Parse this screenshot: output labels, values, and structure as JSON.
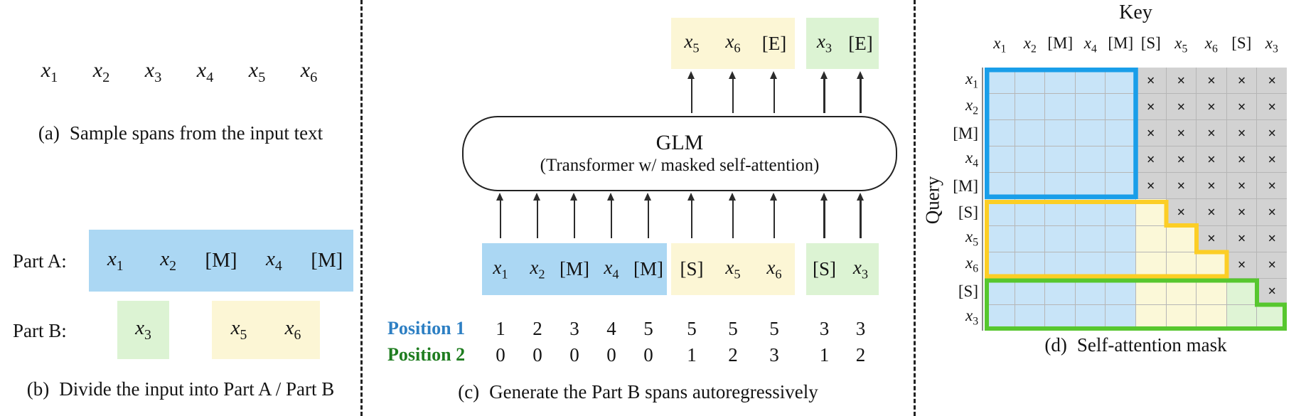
{
  "colors": {
    "blue_fill": "#abd7f3",
    "green_fill": "#dcf3d3",
    "yellow_fill": "#fcf6d5",
    "mask_blue": "#c8e4f8",
    "mask_yellow": "#fbf8d8",
    "mask_green": "#dff4d5",
    "mask_gray": "#d2d2d2",
    "grid_line": "#b6b6b6",
    "border_blue": "#199ee9",
    "border_yellow": "#fcce25",
    "border_green": "#57c72e",
    "pos1_blue": "#2d7fc3",
    "pos2_green": "#1f7d20"
  },
  "panel_a": {
    "tokens": [
      "x1",
      "x2",
      "x3",
      "x4",
      "x5",
      "x6"
    ],
    "caption_label": "(a)",
    "caption": "Sample spans from the input text"
  },
  "panel_b": {
    "part_a_label": "Part A:",
    "part_a_tokens": [
      "x1",
      "x2",
      "[M]",
      "x4",
      "[M]"
    ],
    "part_b_label": "Part B:",
    "part_b_span1": [
      "x3"
    ],
    "part_b_span2": [
      "x5",
      "x6"
    ],
    "caption_label": "(b)",
    "caption": "Divide the input into Part A / Part B"
  },
  "panel_c": {
    "output_span1": [
      "x5",
      "x6",
      "[E]"
    ],
    "output_span2": [
      "x3",
      "[E]"
    ],
    "model_title": "GLM",
    "model_subtitle": "(Transformer w/ masked self-attention)",
    "input_part_a": [
      "x1",
      "x2",
      "[M]",
      "x4",
      "[M]"
    ],
    "input_span1": [
      "[S]",
      "x5",
      "x6"
    ],
    "input_span2": [
      "[S]",
      "x3"
    ],
    "position1_label": "Position 1",
    "position1": [
      "1",
      "2",
      "3",
      "4",
      "5",
      "5",
      "5",
      "5",
      "3",
      "3"
    ],
    "position2_label": "Position 2",
    "position2": [
      "0",
      "0",
      "0",
      "0",
      "0",
      "1",
      "2",
      "3",
      "1",
      "2"
    ],
    "caption_label": "(c)",
    "caption": "Generate the Part B spans autoregressively"
  },
  "panel_d": {
    "key_label": "Key",
    "query_label": "Query",
    "col_labels": [
      "x1",
      "x2",
      "[M]",
      "x4",
      "[M]",
      "[S]",
      "x5",
      "x6",
      "[S]",
      "x3"
    ],
    "row_labels": [
      "x1",
      "x2",
      "[M]",
      "x4",
      "[M]",
      "[S]",
      "x5",
      "x6",
      "[S]",
      "x3"
    ],
    "mask_rows": [
      "BBBBBXXXXX",
      "BBBBBXXXXX",
      "BBBBBXXXXX",
      "BBBBBXXXXX",
      "BBBBBXXXXX",
      "BBBBBYXXXX",
      "BBBBBYYXXX",
      "BBBBBYYYXX",
      "BBBBBYYYGX",
      "BBBBBYYYGG"
    ],
    "x_glyph": "×",
    "caption_label": "(d)",
    "caption": "Self-attention mask"
  }
}
